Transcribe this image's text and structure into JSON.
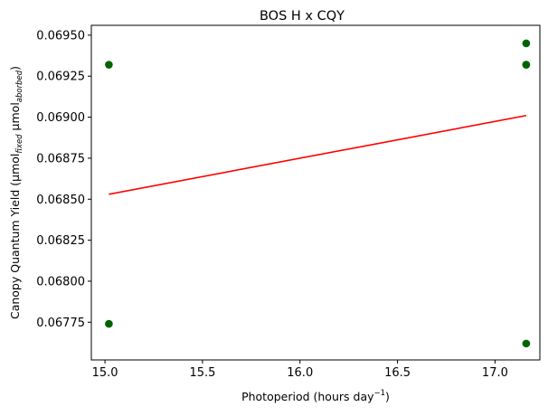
{
  "chart_data": {
    "type": "scatter",
    "title": "BOS H x CQY",
    "xlabel": {
      "main": "Photoperiod (hours day",
      "sup": "−1",
      "close": ")"
    },
    "ylabel": {
      "prefix": "Canopy Quantum Yield (μmol",
      "sub1": "fixed",
      "mid": " μmol",
      "sub2": "aborbed",
      "close": ")"
    },
    "xlim": [
      14.93,
      17.23
    ],
    "ylim": [
      0.06752,
      0.06956
    ],
    "xticks": [
      "15.0",
      "15.5",
      "16.0",
      "16.5",
      "17.0"
    ],
    "yticks": [
      "0.06775",
      "0.06800",
      "0.06825",
      "0.06850",
      "0.06875",
      "0.06900",
      "0.06925",
      "0.06950"
    ],
    "series": [
      {
        "type": "scatter",
        "color": "#006400",
        "points": [
          {
            "x": 15.02,
            "y": 0.06932
          },
          {
            "x": 15.02,
            "y": 0.06774
          },
          {
            "x": 17.16,
            "y": 0.06945
          },
          {
            "x": 17.16,
            "y": 0.06932
          },
          {
            "x": 17.16,
            "y": 0.06932
          },
          {
            "x": 17.16,
            "y": 0.06762
          }
        ]
      },
      {
        "type": "line",
        "color": "#ff0000",
        "points": [
          {
            "x": 15.02,
            "y": 0.06853
          },
          {
            "x": 17.16,
            "y": 0.06901
          }
        ]
      }
    ],
    "grid": false,
    "legend": "none"
  }
}
